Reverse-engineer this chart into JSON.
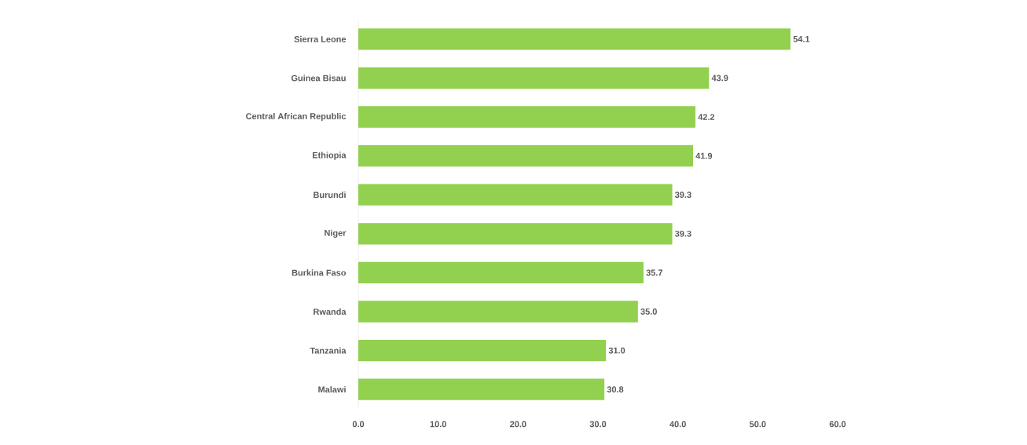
{
  "chart_data": {
    "type": "bar",
    "orientation": "horizontal",
    "categories": [
      "Sierra Leone",
      "Guinea Bisau",
      "Central African Republic",
      "Ethiopia",
      "Burundi",
      "Niger",
      "Burkina Faso",
      "Rwanda",
      "Tanzania",
      "Malawi"
    ],
    "values": [
      54.1,
      43.9,
      42.2,
      41.9,
      39.3,
      39.3,
      35.7,
      35.0,
      31.0,
      30.8
    ],
    "value_labels": [
      "54.1",
      "43.9",
      "42.2",
      "41.9",
      "39.3",
      "39.3",
      "35.7",
      "35.0",
      "31.0",
      "30.8"
    ],
    "color": "#92d050",
    "xlim": [
      0,
      60
    ],
    "xticks": [
      {
        "value": 0,
        "label": "0.0"
      },
      {
        "value": 10,
        "label": "10.0"
      },
      {
        "value": 20,
        "label": "20.0"
      },
      {
        "value": 30,
        "label": "30.0"
      },
      {
        "value": 40,
        "label": "40.0"
      },
      {
        "value": 50,
        "label": "50.0"
      },
      {
        "value": 60,
        "label": "60.0"
      }
    ],
    "grid": false
  }
}
